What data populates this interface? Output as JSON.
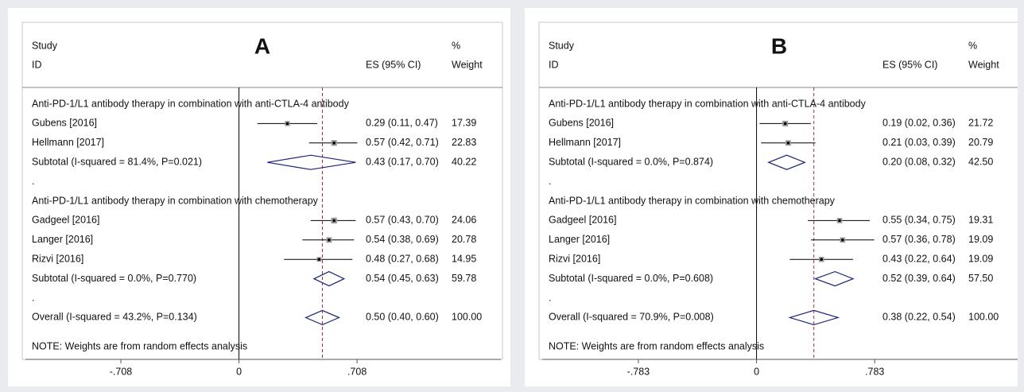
{
  "chart_data": [
    {
      "type": "forest",
      "panel": "A",
      "headers": {
        "study": "Study",
        "id": "ID",
        "es": "ES (95% CI)",
        "pct": "%",
        "weight": "Weight"
      },
      "groups": [
        {
          "title": "Anti-PD-1/L1 antibody therapy in combination with  anti-CTLA-4 antibody",
          "rows": [
            {
              "label": "Gubens [2016]",
              "es": 0.29,
              "lo": 0.11,
              "hi": 0.47,
              "es_label": "0.29 (0.11, 0.47)",
              "weight": 17.39,
              "weight_label": "17.39"
            },
            {
              "label": "Hellmann [2017]",
              "es": 0.57,
              "lo": 0.42,
              "hi": 0.71,
              "es_label": "0.57 (0.42, 0.71)",
              "weight": 22.83,
              "weight_label": "22.83"
            }
          ],
          "subtotal": {
            "label": "Subtotal  (I-squared = 81.4%, P=0.021)",
            "es": 0.43,
            "lo": 0.17,
            "hi": 0.7,
            "es_label": "0.43 (0.17, 0.70)",
            "weight": 40.22,
            "weight_label": "40.22"
          },
          "separator": "."
        },
        {
          "title": "Anti-PD-1/L1 antibody therapy in combination with  chemotherapy",
          "rows": [
            {
              "label": "Gadgeel [2016]",
              "es": 0.57,
              "lo": 0.43,
              "hi": 0.7,
              "es_label": "0.57 (0.43, 0.70)",
              "weight": 24.06,
              "weight_label": "24.06"
            },
            {
              "label": "Langer  [2016]",
              "es": 0.54,
              "lo": 0.38,
              "hi": 0.69,
              "es_label": "0.54 (0.38, 0.69)",
              "weight": 20.78,
              "weight_label": "20.78"
            },
            {
              "label": "Rizvi [2016]",
              "es": 0.48,
              "lo": 0.27,
              "hi": 0.68,
              "es_label": "0.48 (0.27, 0.68)",
              "weight": 14.95,
              "weight_label": "14.95"
            }
          ],
          "subtotal": {
            "label": "Subtotal  (I-squared = 0.0%, P=0.770)",
            "es": 0.54,
            "lo": 0.45,
            "hi": 0.63,
            "es_label": "0.54 (0.45, 0.63)",
            "weight": 59.78,
            "weight_label": "59.78"
          },
          "separator": "."
        }
      ],
      "overall": {
        "label": "Overall  (I-squared = 43.2%, P=0.134)",
        "es": 0.5,
        "lo": 0.4,
        "hi": 0.6,
        "es_label": "0.50 (0.40, 0.60)",
        "weight": 100,
        "weight_label": "100.00"
      },
      "note": "NOTE: Weights are from random effects analysis",
      "xlim": [
        -1.28,
        1.57
      ],
      "xticks": [
        {
          "value": -0.708,
          "label": "-.708"
        },
        0,
        {
          "value": 0.708,
          "label": ".708"
        }
      ]
    },
    {
      "type": "forest",
      "panel": "B",
      "headers": {
        "study": "Study",
        "id": "ID",
        "es": "ES (95% CI)",
        "pct": "%",
        "weight": "Weight"
      },
      "groups": [
        {
          "title": "Anti-PD-1/L1 antibody therapy in combination with  anti-CTLA-4 antibody",
          "rows": [
            {
              "label": "Gubens [2016]",
              "es": 0.19,
              "lo": 0.02,
              "hi": 0.36,
              "es_label": "0.19 (0.02, 0.36)",
              "weight": 21.72,
              "weight_label": "21.72"
            },
            {
              "label": "Hellmann [2017]",
              "es": 0.21,
              "lo": 0.03,
              "hi": 0.39,
              "es_label": "0.21 (0.03, 0.39)",
              "weight": 20.79,
              "weight_label": "20.79"
            }
          ],
          "subtotal": {
            "label": "Subtotal  (I-squared = 0.0%, P=0.874)",
            "es": 0.2,
            "lo": 0.08,
            "hi": 0.32,
            "es_label": "0.20 (0.08, 0.32)",
            "weight": 42.5,
            "weight_label": "42.50"
          },
          "separator": "."
        },
        {
          "title": "Anti-PD-1/L1 antibody therapy in combination with  chemotherapy",
          "rows": [
            {
              "label": "Gadgeel [2016]",
              "es": 0.55,
              "lo": 0.34,
              "hi": 0.75,
              "es_label": "0.55 (0.34, 0.75)",
              "weight": 19.31,
              "weight_label": "19.31"
            },
            {
              "label": "Langer  [2016]",
              "es": 0.57,
              "lo": 0.36,
              "hi": 0.78,
              "es_label": "0.57 (0.36, 0.78)",
              "weight": 19.09,
              "weight_label": "19.09"
            },
            {
              "label": "Rizvi [2016]",
              "es": 0.43,
              "lo": 0.22,
              "hi": 0.64,
              "es_label": "0.43 (0.22, 0.64)",
              "weight": 19.09,
              "weight_label": "19.09"
            }
          ],
          "subtotal": {
            "label": "Subtotal  (I-squared = 0.0%, P=0.608)",
            "es": 0.52,
            "lo": 0.39,
            "hi": 0.64,
            "es_label": "0.52 (0.39, 0.64)",
            "weight": 57.5,
            "weight_label": "57.50"
          },
          "separator": "."
        }
      ],
      "overall": {
        "label": "Overall  (I-squared = 70.9%, P=0.008)",
        "es": 0.38,
        "lo": 0.22,
        "hi": 0.54,
        "es_label": "0.38 (0.22, 0.54)",
        "weight": 100,
        "weight_label": "100.00"
      },
      "note": "NOTE: Weights are from random effects analysis",
      "xlim": [
        -1.42,
        1.73
      ],
      "xticks": [
        {
          "value": -0.783,
          "label": "-.783"
        },
        0,
        {
          "value": 0.783,
          "label": ".783"
        }
      ]
    }
  ]
}
